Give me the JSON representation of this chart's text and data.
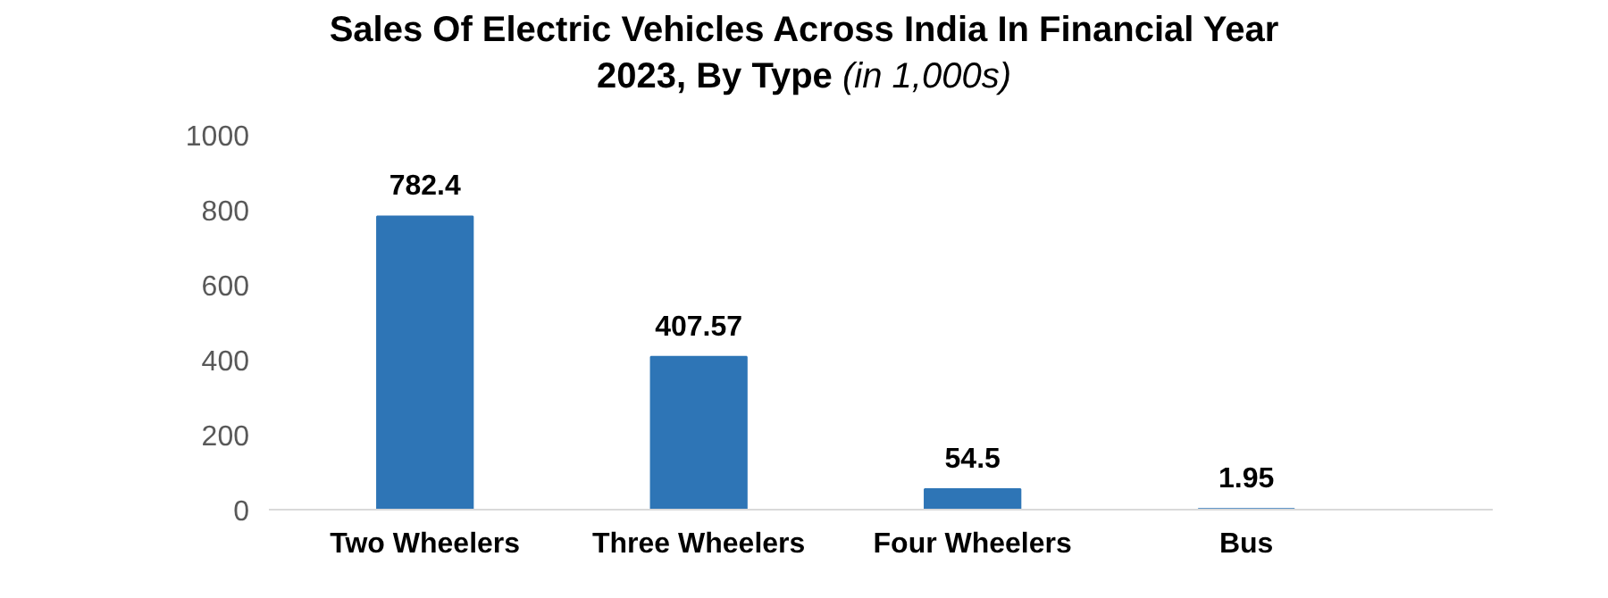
{
  "chart_data": {
    "type": "bar",
    "title": "Sales Of Electric Vehicles Across India In Financial Year 2023, By Type",
    "subtitle": "(in 1,000s)",
    "categories": [
      "Two Wheelers",
      "Three Wheelers",
      "Four Wheelers",
      "Bus"
    ],
    "values": [
      782.4,
      407.57,
      54.5,
      1.95
    ],
    "color": "#2e75b6",
    "ylim": [
      0,
      1000
    ],
    "yticks": [
      0,
      200,
      400,
      600,
      800,
      1000
    ],
    "grid": false,
    "data_labels": true
  }
}
